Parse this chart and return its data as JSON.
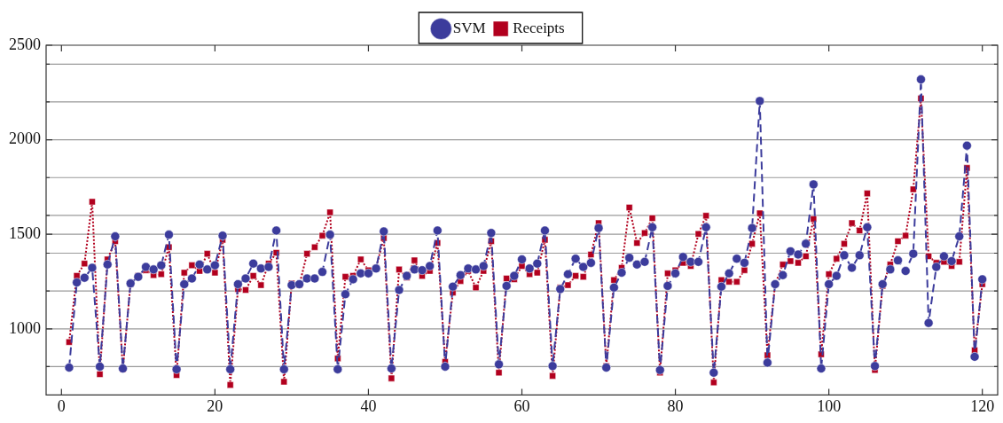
{
  "chart_data": {
    "type": "line",
    "x": [
      1,
      2,
      3,
      4,
      5,
      6,
      7,
      8,
      9,
      10,
      11,
      12,
      13,
      14,
      15,
      16,
      17,
      18,
      19,
      20,
      21,
      22,
      23,
      24,
      25,
      26,
      27,
      28,
      29,
      30,
      31,
      32,
      33,
      34,
      35,
      36,
      37,
      38,
      39,
      40,
      41,
      42,
      43,
      44,
      45,
      46,
      47,
      48,
      49,
      50,
      51,
      52,
      53,
      54,
      55,
      56,
      57,
      58,
      59,
      60,
      61,
      62,
      63,
      64,
      65,
      66,
      67,
      68,
      69,
      70,
      71,
      72,
      73,
      74,
      75,
      76,
      77,
      78,
      79,
      80,
      81,
      82,
      83,
      84,
      85,
      86,
      87,
      88,
      89,
      90,
      91,
      92,
      93,
      94,
      95,
      96,
      97,
      98,
      99,
      100,
      101,
      102,
      103,
      104,
      105,
      106,
      107,
      108,
      109,
      110,
      111,
      112,
      113,
      114,
      115,
      116,
      117,
      118,
      119,
      120
    ],
    "series": [
      {
        "name": "SVM",
        "color": "#3c3c9c",
        "marker": "circle",
        "line_style": "dashed",
        "values": [
          795,
          1245,
          1270,
          1323,
          800,
          1340,
          1489,
          790,
          1240,
          1275,
          1327,
          1314,
          1336,
          1498,
          786,
          1236,
          1266,
          1340,
          1314,
          1336,
          1493,
          786,
          1236,
          1266,
          1345,
          1319,
          1327,
          1520,
          786,
          1231,
          1236,
          1266,
          1266,
          1301,
          1498,
          786,
          1183,
          1262,
          1293,
          1293,
          1319,
          1515,
          790,
          1205,
          1280,
          1314,
          1310,
          1332,
          1520,
          800,
          1223,
          1284,
          1319,
          1314,
          1332,
          1507,
          812,
          1227,
          1280,
          1367,
          1319,
          1345,
          1520,
          803,
          1210,
          1289,
          1371,
          1327,
          1349,
          1533,
          795,
          1218,
          1297,
          1376,
          1340,
          1354,
          1537,
          782,
          1227,
          1293,
          1380,
          1354,
          1354,
          1537,
          768,
          1223,
          1293,
          1371,
          1349,
          1533,
          2205,
          821,
          1236,
          1284,
          1410,
          1393,
          1450,
          1764,
          790,
          1236,
          1280,
          1389,
          1323,
          1389,
          1537,
          803,
          1236,
          1314,
          1362,
          1306,
          1397,
          2319,
          1031,
          1327,
          1384,
          1358,
          1489,
          1969,
          852,
          1262
        ]
      },
      {
        "name": "Receipts",
        "color": "#b2001e",
        "marker": "square",
        "line_style": "dotted",
        "values": [
          930,
          1280,
          1345,
          1672,
          760,
          1367,
          1463,
          786,
          1240,
          1280,
          1310,
          1284,
          1289,
          1432,
          755,
          1297,
          1336,
          1306,
          1397,
          1297,
          1471,
          703,
          1210,
          1205,
          1280,
          1231,
          1345,
          1402,
          720,
          1240,
          1231,
          1397,
          1432,
          1493,
          1616,
          843,
          1275,
          1280,
          1367,
          1310,
          1323,
          1480,
          738,
          1314,
          1271,
          1362,
          1280,
          1306,
          1454,
          825,
          1192,
          1253,
          1306,
          1218,
          1306,
          1463,
          768,
          1266,
          1262,
          1332,
          1289,
          1297,
          1471,
          751,
          1218,
          1231,
          1280,
          1275,
          1393,
          1559,
          803,
          1258,
          1323,
          1642,
          1454,
          1507,
          1585,
          768,
          1293,
          1310,
          1349,
          1332,
          1502,
          1598,
          716,
          1258,
          1249,
          1249,
          1310,
          1450,
          1611,
          860,
          1236,
          1340,
          1358,
          1349,
          1384,
          1581,
          865,
          1289,
          1371,
          1450,
          1559,
          1520,
          1716,
          782,
          1227,
          1340,
          1463,
          1493,
          1738,
          2218,
          1384,
          1349,
          1354,
          1332,
          1354,
          1851,
          886,
          1236
        ]
      }
    ],
    "xlim": [
      -2,
      122
    ],
    "xticks": [
      0,
      20,
      40,
      60,
      80,
      100,
      120
    ],
    "ylim": [
      650,
      2500
    ],
    "yticks": [
      {
        "value": 800,
        "label": null
      },
      1000,
      {
        "value": 1200,
        "label": null
      },
      {
        "value": 1400,
        "label": null
      },
      1500,
      {
        "value": 1600,
        "label": null
      },
      {
        "value": 1800,
        "label": null
      },
      2000,
      {
        "value": 2200,
        "label": null
      },
      {
        "value": 2400,
        "label": null
      },
      2500
    ],
    "grid": "y",
    "legend": "top"
  }
}
